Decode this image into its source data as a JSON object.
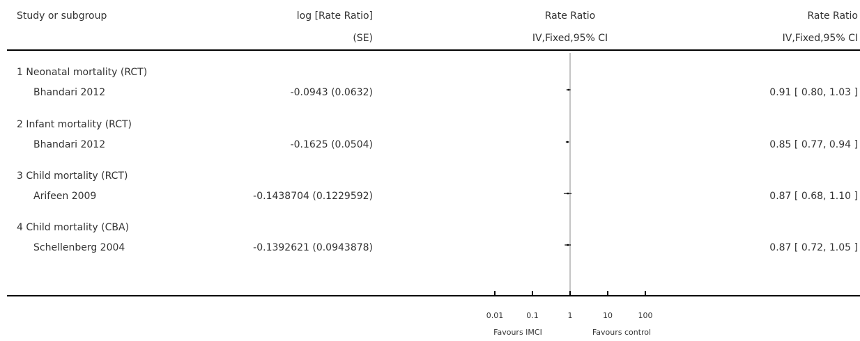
{
  "header": {
    "col1": "Study or subgroup",
    "col2_line1": "log [Rate Ratio]",
    "col2_line2": "(SE)",
    "col3_line1": "Rate Ratio",
    "col3_line2": "IV,Fixed,95% CI",
    "col4_line1": "Rate Ratio",
    "col4_line2": "IV,Fixed,95% CI"
  },
  "subgroups": [
    {
      "title": "1 Neonatal mortality (RCT)",
      "study": "Bhandari 2012",
      "logrr_se": "-0.0943 (0.0632)",
      "ci_text": "0.91 [ 0.80, 1.03 ]"
    },
    {
      "title": "2 Infant mortality (RCT)",
      "study": "Bhandari 2012",
      "logrr_se": "-0.1625 (0.0504)",
      "ci_text": "0.85 [ 0.77, 0.94 ]"
    },
    {
      "title": "3 Child mortality (RCT)",
      "study": "Arifeen 2009",
      "logrr_se": "-0.1438704 (0.1229592)",
      "ci_text": "0.87 [ 0.68, 1.10 ]"
    },
    {
      "title": "4 Child mortality (CBA)",
      "study": "Schellenberg 2004",
      "logrr_se": "-0.1392621 (0.0943878)",
      "ci_text": "0.87 [ 0.72, 1.05 ]"
    }
  ],
  "axis": {
    "ticks": [
      "0.01",
      "0.1",
      "1",
      "10",
      "100"
    ],
    "favours_left": "Favours IMCI",
    "favours_right": "Favours control"
  },
  "chart_data": {
    "type": "forest",
    "scale": "log",
    "xlim": [
      0.01,
      100
    ],
    "reference_line": 1,
    "tick_values": [
      0.01,
      0.1,
      1,
      10,
      100
    ],
    "points": [
      {
        "label": "Bhandari 2012",
        "subgroup": "1 Neonatal mortality (RCT)",
        "rr": 0.91,
        "lower": 0.8,
        "upper": 1.03
      },
      {
        "label": "Bhandari 2012",
        "subgroup": "2 Infant mortality (RCT)",
        "rr": 0.85,
        "lower": 0.77,
        "upper": 0.94
      },
      {
        "label": "Arifeen 2009",
        "subgroup": "3 Child mortality (RCT)",
        "rr": 0.87,
        "lower": 0.68,
        "upper": 1.1
      },
      {
        "label": "Schellenberg 2004",
        "subgroup": "4 Child mortality (CBA)",
        "rr": 0.87,
        "lower": 0.72,
        "upper": 1.05
      }
    ]
  }
}
